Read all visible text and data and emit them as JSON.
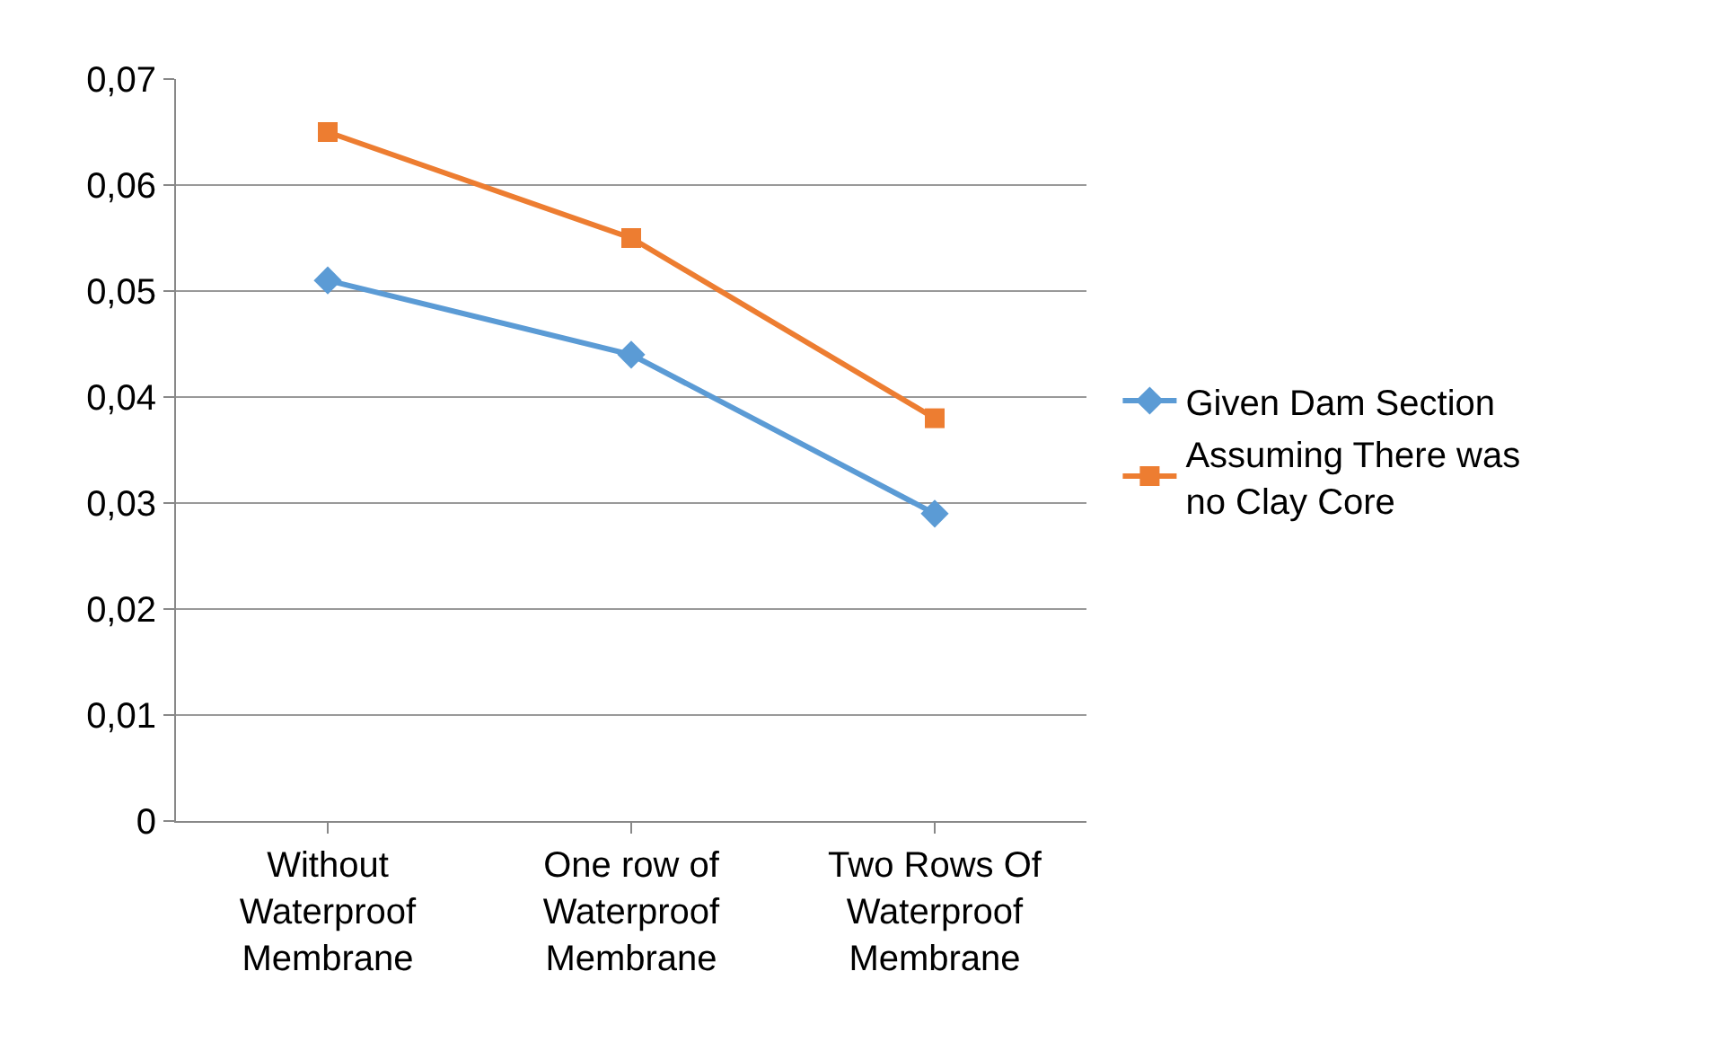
{
  "chart_data": {
    "type": "line",
    "categories": [
      "Without Waterproof Membrane",
      "One row of Waterproof Membrane",
      "Two Rows Of Waterproof Membrane"
    ],
    "series": [
      {
        "name": "Given Dam Section",
        "color": "#5b9bd5",
        "marker": "diamond",
        "values": [
          0.051,
          0.044,
          0.029
        ]
      },
      {
        "name": "Assuming There was no Clay Core",
        "color": "#ed7d31",
        "marker": "square",
        "values": [
          0.065,
          0.055,
          0.038
        ]
      }
    ],
    "ylim": [
      0,
      0.07
    ],
    "yticks": [
      0,
      {
        "value": 0.01,
        "label": "0,01"
      },
      {
        "value": 0.02,
        "label": "0,02"
      },
      {
        "value": 0.03,
        "label": "0,03"
      },
      {
        "value": 0.04,
        "label": "0,04"
      },
      {
        "value": 0.05,
        "label": "0,05"
      },
      {
        "value": 0.06,
        "label": "0,06"
      },
      {
        "value": 0.07,
        "label": "0,07"
      }
    ],
    "grid": "y",
    "legend": "right",
    "line_style": "solid"
  }
}
